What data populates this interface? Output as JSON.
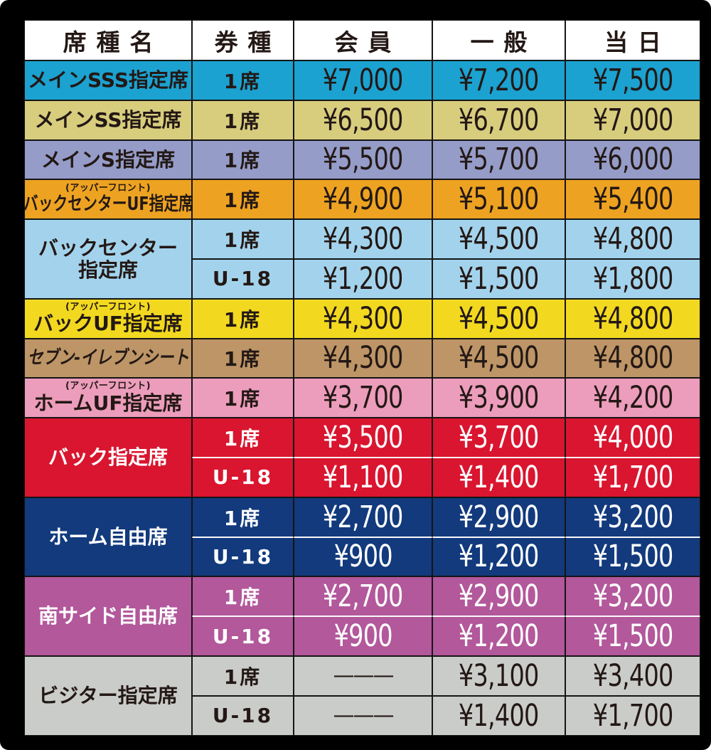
{
  "header": {
    "cols": [
      "席種名",
      "券種",
      "会員",
      "一般",
      "当日"
    ]
  },
  "groups": [
    {
      "name": "メインSSS指定席",
      "color": "#1BA2D0",
      "rows": [
        {
          "ticket": "1席",
          "member": "¥7,000",
          "general": "¥7,200",
          "sameday": "¥7,500"
        }
      ]
    },
    {
      "name": "メインSS指定席",
      "color": "#D8CD7D",
      "rows": [
        {
          "ticket": "1席",
          "member": "¥6,500",
          "general": "¥6,700",
          "sameday": "¥7,000"
        }
      ]
    },
    {
      "name": "メインS指定席",
      "color": "#959CC8",
      "rows": [
        {
          "ticket": "1席",
          "member": "¥5,500",
          "general": "¥5,700",
          "sameday": "¥6,000"
        }
      ]
    },
    {
      "name": "バックセンターUF指定席",
      "note": "(アッパーフロント)",
      "color": "#EDA321",
      "rows": [
        {
          "ticket": "1席",
          "member": "¥4,900",
          "general": "¥5,100",
          "sameday": "¥5,400"
        }
      ]
    },
    {
      "name": "バックセンター",
      "name2": "指定席",
      "color": "#A3D3EC",
      "rows": [
        {
          "ticket": "1席",
          "member": "¥4,300",
          "general": "¥4,500",
          "sameday": "¥4,800"
        },
        {
          "ticket": "U-18",
          "member": "¥1,200",
          "general": "¥1,500",
          "sameday": "¥1,800"
        }
      ]
    },
    {
      "name": "バックUF指定席",
      "note": "(アッパーフロント)",
      "color": "#F2D920",
      "rows": [
        {
          "ticket": "1席",
          "member": "¥4,300",
          "general": "¥4,500",
          "sameday": "¥4,800"
        }
      ]
    },
    {
      "name": "セブン-イレブンシート",
      "color": "#BD9566",
      "rows": [
        {
          "ticket": "1席",
          "member": "¥4,300",
          "general": "¥4,500",
          "sameday": "¥4,800"
        }
      ]
    },
    {
      "name": "ホームUF指定席",
      "note": "(アッパーフロント)",
      "color": "#EC9DBB",
      "rows": [
        {
          "ticket": "1席",
          "member": "¥3,700",
          "general": "¥3,900",
          "sameday": "¥4,200"
        }
      ]
    },
    {
      "name": "バック指定席",
      "color": "#D9152F",
      "rows": [
        {
          "ticket": "1席",
          "member": "¥3,500",
          "general": "¥3,700",
          "sameday": "¥4,000"
        },
        {
          "ticket": "U-18",
          "member": "¥1,100",
          "general": "¥1,400",
          "sameday": "¥1,700"
        }
      ]
    },
    {
      "name": "ホーム自由席",
      "color": "#123A7D",
      "rows": [
        {
          "ticket": "1席",
          "member": "¥2,700",
          "general": "¥2,900",
          "sameday": "¥3,200"
        },
        {
          "ticket": "U-18",
          "member": "¥900",
          "general": "¥1,200",
          "sameday": "¥1,500"
        }
      ]
    },
    {
      "name": "南サイド自由席",
      "color": "#B2589B",
      "rows": [
        {
          "ticket": "1席",
          "member": "¥2,700",
          "general": "¥2,900",
          "sameday": "¥3,200"
        },
        {
          "ticket": "U-18",
          "member": "¥900",
          "general": "¥1,200",
          "sameday": "¥1,500"
        }
      ]
    },
    {
      "name": "ビジター指定席",
      "color": "#CACCCA",
      "rows": [
        {
          "ticket": "1席",
          "member": "———",
          "general": "¥3,100",
          "sameday": "¥3,400"
        },
        {
          "ticket": "U-18",
          "member": "———",
          "general": "¥1,400",
          "sameday": "¥1,700"
        }
      ]
    }
  ],
  "colors": {
    "background": "#000000",
    "header_bg": "#FFFFFF",
    "dark_text": "#231815",
    "light_text": "#FFFFFF",
    "grid_line": "#151515"
  },
  "chart_data": {
    "type": "table",
    "title": "チケット料金表",
    "columns": [
      "席種名",
      "券種",
      "会員",
      "一般",
      "当日"
    ],
    "rows": [
      [
        "メインSSS指定席",
        "1席",
        "¥7,000",
        "¥7,200",
        "¥7,500"
      ],
      [
        "メインSS指定席",
        "1席",
        "¥6,500",
        "¥6,700",
        "¥7,000"
      ],
      [
        "メインS指定席",
        "1席",
        "¥5,500",
        "¥5,700",
        "¥6,000"
      ],
      [
        "バックセンターUF指定席（アッパーフロント）",
        "1席",
        "¥4,900",
        "¥5,100",
        "¥5,400"
      ],
      [
        "バックセンター指定席",
        "1席",
        "¥4,300",
        "¥4,500",
        "¥4,800"
      ],
      [
        "バックセンター指定席",
        "U-18",
        "¥1,200",
        "¥1,500",
        "¥1,800"
      ],
      [
        "バックUF指定席（アッパーフロント）",
        "1席",
        "¥4,300",
        "¥4,500",
        "¥4,800"
      ],
      [
        "セブン-イレブンシート",
        "1席",
        "¥4,300",
        "¥4,500",
        "¥4,800"
      ],
      [
        "ホームUF指定席（アッパーフロント）",
        "1席",
        "¥3,700",
        "¥3,900",
        "¥4,200"
      ],
      [
        "バック指定席",
        "1席",
        "¥3,500",
        "¥3,700",
        "¥4,000"
      ],
      [
        "バック指定席",
        "U-18",
        "¥1,100",
        "¥1,400",
        "¥1,700"
      ],
      [
        "ホーム自由席",
        "1席",
        "¥2,700",
        "¥2,900",
        "¥3,200"
      ],
      [
        "ホーム自由席",
        "U-18",
        "¥900",
        "¥1,200",
        "¥1,500"
      ],
      [
        "南サイド自由席",
        "1席",
        "¥2,700",
        "¥2,900",
        "¥3,200"
      ],
      [
        "南サイド自由席",
        "U-18",
        "¥900",
        "¥1,200",
        "¥1,500"
      ],
      [
        "ビジター指定席",
        "1席",
        "—",
        "¥3,100",
        "¥3,400"
      ],
      [
        "ビジター指定席",
        "U-18",
        "—",
        "¥1,400",
        "¥1,700"
      ]
    ]
  }
}
